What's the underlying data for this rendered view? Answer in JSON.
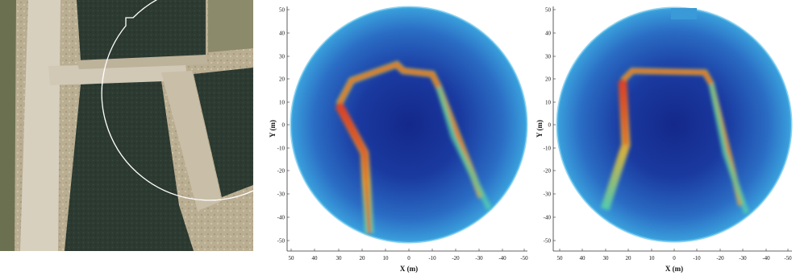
{
  "panels": [
    {
      "id": "aerial",
      "kind": "satellite-image"
    },
    {
      "id": "plot-a",
      "kind": "polar-radar-map",
      "xlabel": "X (m)",
      "ylabel": "Y (m)",
      "xticks": [
        "50",
        "40",
        "30",
        "20",
        "10",
        "0",
        "-10",
        "-20",
        "-30",
        "-40",
        "-50"
      ],
      "yticks": [
        "50",
        "40",
        "30",
        "20",
        "10",
        "0",
        "-10",
        "-20",
        "-30",
        "-40",
        "-50"
      ]
    },
    {
      "id": "plot-b",
      "kind": "polar-radar-map",
      "xlabel": "X (m)",
      "ylabel": "Y (m)",
      "xticks": [
        "50",
        "40",
        "30",
        "20",
        "10",
        "0",
        "-10",
        "-20",
        "-30",
        "-40",
        "-50"
      ],
      "yticks": [
        "50",
        "40",
        "30",
        "20",
        "10",
        "0",
        "-10",
        "-20",
        "-30",
        "-40",
        "-50"
      ]
    }
  ],
  "colors": {
    "disk_outer": "#3aa0dc",
    "disk_inner": "#1a3aa0",
    "disk_center": "#14288a",
    "road_hot": "#e8401c",
    "road_warm": "#f2c431",
    "road_cool": "#58d6a8",
    "grass": "#2d3b32",
    "path": "#cfc6b4"
  }
}
